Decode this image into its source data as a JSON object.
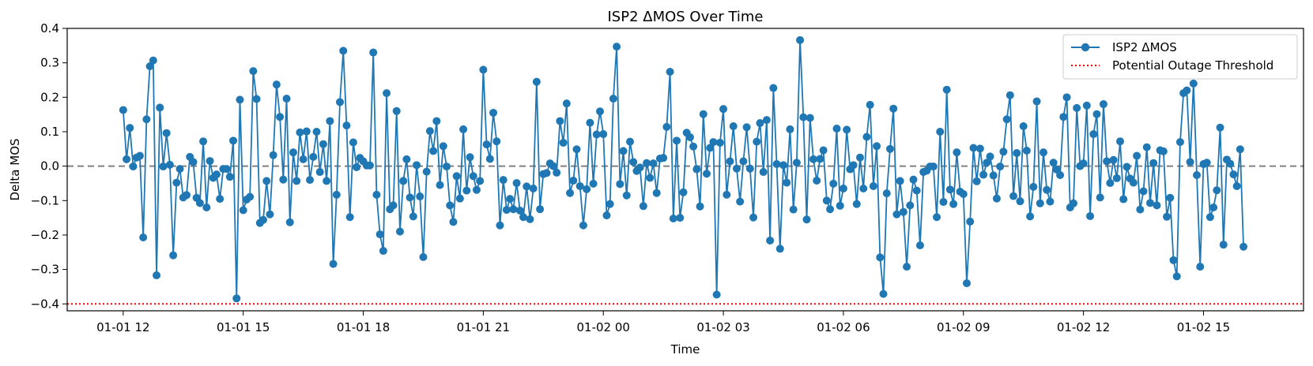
{
  "chart_data": {
    "type": "line",
    "title": "ISP2 ΔMOS Over Time",
    "xlabel": "Time",
    "ylabel": "Delta MOS",
    "ylim": [
      -0.42,
      0.4
    ],
    "y_ticks": [
      -0.4,
      -0.3,
      -0.2,
      -0.1,
      0.0,
      0.1,
      0.2,
      0.3,
      0.4
    ],
    "y_tick_labels": [
      "−0.4",
      "−0.3",
      "−0.2",
      "−0.1",
      "0.0",
      "0.1",
      "0.2",
      "0.3",
      "0.4"
    ],
    "x_range_hours": [
      -1.4,
      29.5
    ],
    "x_ticks_hours": [
      0,
      3,
      6,
      9,
      12,
      15,
      18,
      21,
      24,
      27
    ],
    "x_tick_labels": [
      "01-01 12",
      "01-01 15",
      "01-01 18",
      "01-01 21",
      "01-02 00",
      "01-02 03",
      "01-02 06",
      "01-02 09",
      "01-02 12",
      "01-02 15"
    ],
    "x_start_label": "01-01 12:00",
    "step_minutes": 5,
    "series": [
      {
        "name": "ISP2 ΔMOS",
        "color": "#1f77b4",
        "style": "line-with-markers",
        "values": [
          0.163,
          0.02,
          0.111,
          -0.001,
          0.025,
          0.03,
          -0.207,
          0.136,
          0.29,
          0.307,
          -0.317,
          0.17,
          -0.001,
          0.096,
          0.004,
          -0.259,
          -0.048,
          -0.008,
          -0.091,
          -0.084,
          0.027,
          0.012,
          -0.092,
          -0.107,
          0.072,
          -0.12,
          0.015,
          -0.034,
          -0.024,
          -0.095,
          -0.008,
          -0.008,
          -0.031,
          0.074,
          -0.384,
          0.193,
          -0.128,
          -0.097,
          -0.089,
          0.276,
          0.195,
          -0.165,
          -0.156,
          -0.043,
          -0.14,
          0.032,
          0.237,
          0.143,
          -0.039,
          0.196,
          -0.163,
          0.04,
          -0.043,
          0.098,
          0.02,
          0.101,
          -0.04,
          0.027,
          0.1,
          -0.017,
          0.064,
          -0.043,
          0.131,
          -0.284,
          -0.083,
          0.186,
          0.335,
          0.118,
          -0.148,
          0.069,
          -0.003,
          0.024,
          0.014,
          0.002,
          0.002,
          0.33,
          -0.083,
          -0.198,
          -0.246,
          0.212,
          -0.125,
          -0.114,
          0.16,
          -0.19,
          -0.043,
          0.02,
          -0.091,
          -0.146,
          0.003,
          -0.088,
          -0.264,
          -0.016,
          0.102,
          0.044,
          0.131,
          -0.055,
          0.058,
          -0.001,
          -0.114,
          -0.162,
          -0.029,
          -0.094,
          0.107,
          -0.071,
          0.026,
          -0.029,
          -0.069,
          -0.043,
          0.28,
          0.063,
          0.021,
          0.155,
          0.072,
          -0.172,
          -0.04,
          -0.127,
          -0.095,
          -0.125,
          -0.049,
          -0.129,
          -0.148,
          -0.059,
          -0.154,
          -0.065,
          0.245,
          -0.125,
          -0.023,
          -0.02,
          0.008,
          0.0,
          -0.019,
          0.131,
          0.068,
          0.182,
          -0.078,
          -0.042,
          0.049,
          -0.058,
          -0.172,
          -0.067,
          0.126,
          -0.051,
          0.092,
          0.159,
          0.093,
          -0.143,
          -0.11,
          0.196,
          0.347,
          -0.052,
          0.044,
          -0.085,
          0.071,
          0.012,
          -0.014,
          -0.004,
          -0.116,
          0.009,
          -0.034,
          0.008,
          -0.078,
          0.022,
          0.024,
          0.114,
          0.274,
          -0.152,
          0.074,
          -0.15,
          -0.076,
          0.097,
          0.084,
          0.057,
          -0.009,
          -0.117,
          0.151,
          -0.022,
          0.053,
          0.07,
          -0.373,
          0.068,
          0.166,
          -0.083,
          0.014,
          0.116,
          -0.007,
          -0.103,
          0.014,
          0.113,
          -0.007,
          -0.149,
          0.071,
          0.125,
          -0.017,
          0.134,
          -0.216,
          0.227,
          0.006,
          -0.24,
          0.003,
          -0.048,
          0.107,
          -0.126,
          0.01,
          0.366,
          0.142,
          -0.155,
          0.14,
          0.02,
          -0.042,
          0.021,
          0.046,
          -0.1,
          -0.125,
          -0.051,
          0.109,
          -0.115,
          -0.065,
          0.106,
          -0.009,
          0.003,
          -0.11,
          0.025,
          -0.065,
          0.085,
          0.178,
          -0.058,
          0.058,
          -0.265,
          -0.371,
          -0.079,
          0.05,
          0.167,
          -0.14,
          -0.043,
          -0.133,
          -0.292,
          -0.114,
          -0.039,
          -0.071,
          -0.23,
          -0.017,
          -0.013,
          -0.001,
          -0.001,
          -0.148,
          0.1,
          -0.104,
          0.222,
          -0.068,
          -0.11,
          0.04,
          -0.074,
          -0.081,
          -0.34,
          -0.161,
          0.053,
          -0.044,
          0.051,
          -0.025,
          0.01,
          0.028,
          -0.027,
          -0.094,
          -0.001,
          0.042,
          0.136,
          0.206,
          -0.087,
          0.038,
          -0.102,
          0.116,
          0.045,
          -0.146,
          -0.06,
          0.188,
          -0.108,
          0.04,
          -0.069,
          -0.103,
          0.01,
          -0.01,
          -0.026,
          0.143,
          0.2,
          -0.12,
          -0.108,
          0.169,
          0.0,
          0.008,
          0.176,
          -0.145,
          0.093,
          0.151,
          -0.091,
          0.18,
          0.014,
          -0.049,
          0.018,
          -0.035,
          0.072,
          -0.096,
          -0.002,
          -0.036,
          -0.048,
          0.03,
          -0.126,
          -0.073,
          0.055,
          -0.107,
          0.009,
          -0.114,
          0.046,
          0.043,
          -0.147,
          -0.092,
          -0.273,
          -0.32,
          0.07,
          0.212,
          0.22,
          0.012,
          0.24,
          -0.026,
          -0.292,
          0.006,
          0.01,
          -0.148,
          -0.12,
          -0.07,
          0.112,
          -0.228,
          0.019,
          0.007,
          -0.024,
          -0.058,
          0.049,
          -0.234
        ]
      }
    ],
    "reference_lines": [
      {
        "name": "zero-line",
        "y": 0.0,
        "color": "#808080",
        "style": "dashed"
      },
      {
        "name": "Potential Outage Threshold",
        "y": -0.4,
        "color": "#ff0000",
        "style": "dotted"
      }
    ],
    "legend": {
      "placement": "top-right",
      "entries": [
        "ISP2 ΔMOS",
        "Potential Outage Threshold"
      ]
    },
    "grid": false
  }
}
